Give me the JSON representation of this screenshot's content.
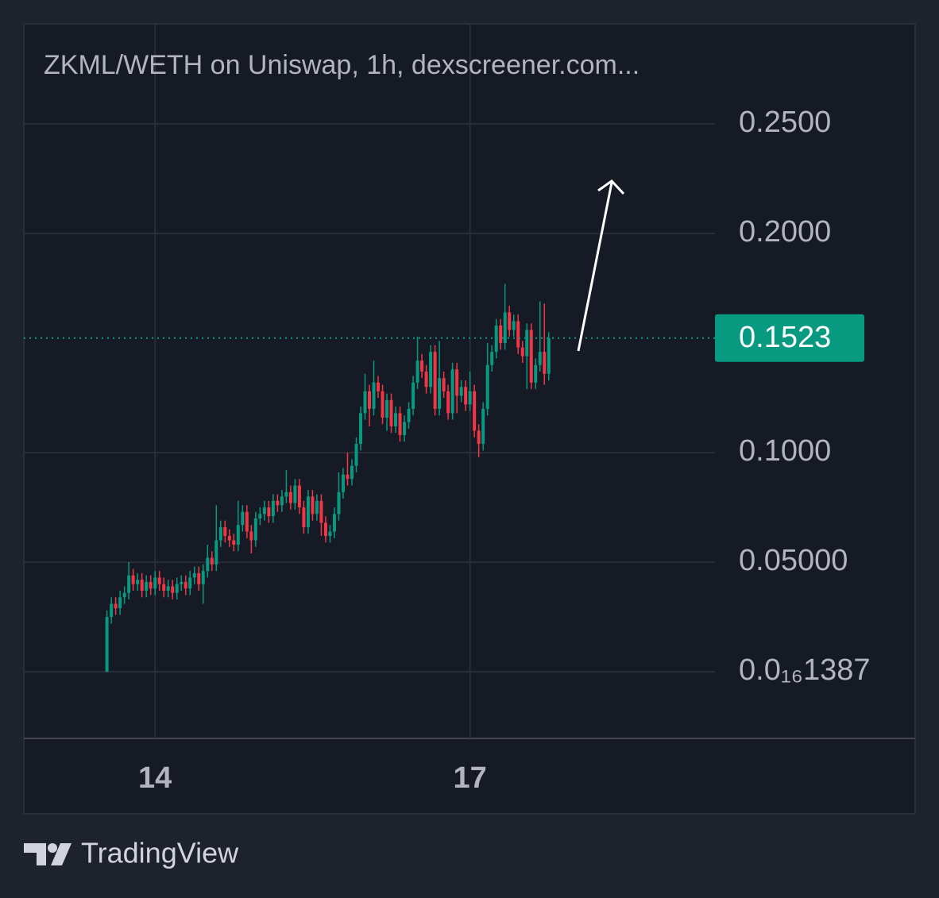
{
  "chart_data": {
    "type": "candlestick",
    "title": "ZKML/WETH on Uniswap, 1h, dexscreener.com...",
    "up_color": "#089981",
    "down_color": "#f23645",
    "open": [
      0,
      0.025,
      0.031,
      0.029,
      0.034,
      0.036,
      0.044,
      0.04,
      0.042,
      0.037,
      0.041,
      0.038,
      0.043,
      0.04,
      0.037,
      0.039,
      0.036,
      0.04,
      0.041,
      0.038,
      0.043,
      0.045,
      0.04,
      0.046,
      0.052,
      0.049,
      0.06,
      0.066,
      0.062,
      0.06,
      0.058,
      0.067,
      0.073,
      0.064,
      0.06,
      0.07,
      0.072,
      0.075,
      0.071,
      0.078,
      0.076,
      0.08,
      0.082,
      0.077,
      0.085,
      0.075,
      0.066,
      0.08,
      0.072,
      0.078,
      0.068,
      0.062,
      0.064,
      0.072,
      0.082,
      0.09,
      0.088,
      0.094,
      0.104,
      0.118,
      0.128,
      0.12,
      0.132,
      0.128,
      0.116,
      0.124,
      0.112,
      0.118,
      0.108,
      0.114,
      0.12,
      0.132,
      0.142,
      0.137,
      0.13,
      0.146,
      0.12,
      0.134,
      0.128,
      0.118,
      0.138,
      0.126,
      0.13,
      0.122,
      0.128,
      0.11,
      0.104,
      0.12,
      0.14,
      0.146,
      0.158,
      0.15,
      0.164,
      0.156,
      0.16,
      0.148,
      0.144,
      0.156,
      0.132,
      0.14,
      0.146,
      0.136
    ],
    "close": [
      0.025,
      0.031,
      0.029,
      0.034,
      0.036,
      0.044,
      0.04,
      0.042,
      0.037,
      0.041,
      0.038,
      0.043,
      0.04,
      0.037,
      0.039,
      0.036,
      0.04,
      0.041,
      0.038,
      0.043,
      0.045,
      0.04,
      0.046,
      0.052,
      0.049,
      0.06,
      0.066,
      0.062,
      0.06,
      0.058,
      0.067,
      0.073,
      0.064,
      0.06,
      0.07,
      0.072,
      0.075,
      0.071,
      0.078,
      0.076,
      0.08,
      0.082,
      0.077,
      0.085,
      0.075,
      0.066,
      0.08,
      0.072,
      0.078,
      0.068,
      0.062,
      0.064,
      0.072,
      0.082,
      0.09,
      0.088,
      0.094,
      0.104,
      0.118,
      0.128,
      0.12,
      0.132,
      0.128,
      0.116,
      0.124,
      0.112,
      0.118,
      0.108,
      0.114,
      0.12,
      0.132,
      0.142,
      0.137,
      0.13,
      0.146,
      0.12,
      0.134,
      0.128,
      0.118,
      0.138,
      0.126,
      0.13,
      0.122,
      0.128,
      0.11,
      0.104,
      0.12,
      0.14,
      0.146,
      0.158,
      0.15,
      0.164,
      0.156,
      0.16,
      0.148,
      0.144,
      0.156,
      0.132,
      0.14,
      0.146,
      0.136,
      0.1523
    ],
    "high": [
      0.028,
      0.034,
      0.034,
      0.037,
      0.039,
      0.05,
      0.047,
      0.045,
      0.045,
      0.044,
      0.044,
      0.046,
      0.046,
      0.043,
      0.042,
      0.042,
      0.043,
      0.044,
      0.044,
      0.046,
      0.048,
      0.048,
      0.049,
      0.058,
      0.055,
      0.076,
      0.069,
      0.069,
      0.065,
      0.063,
      0.078,
      0.076,
      0.076,
      0.067,
      0.073,
      0.075,
      0.078,
      0.078,
      0.081,
      0.081,
      0.083,
      0.092,
      0.085,
      0.088,
      0.088,
      0.078,
      0.083,
      0.083,
      0.081,
      0.081,
      0.071,
      0.067,
      0.075,
      0.091,
      0.093,
      0.1,
      0.097,
      0.107,
      0.121,
      0.136,
      0.131,
      0.142,
      0.135,
      0.131,
      0.127,
      0.127,
      0.121,
      0.121,
      0.117,
      0.123,
      0.135,
      0.153,
      0.145,
      0.14,
      0.149,
      0.149,
      0.151,
      0.137,
      0.131,
      0.141,
      0.141,
      0.133,
      0.133,
      0.137,
      0.131,
      0.113,
      0.123,
      0.15,
      0.149,
      0.161,
      0.161,
      0.177,
      0.167,
      0.163,
      0.163,
      0.151,
      0.159,
      0.159,
      0.143,
      0.169,
      0.168,
      0.155
    ],
    "low": [
      0,
      0.022,
      0.026,
      0.026,
      0.031,
      0.033,
      0.037,
      0.037,
      0.034,
      0.034,
      0.035,
      0.035,
      0.037,
      0.034,
      0.034,
      0.033,
      0.033,
      0.037,
      0.035,
      0.035,
      0.04,
      0.037,
      0.031,
      0.043,
      0.046,
      0.046,
      0.057,
      0.059,
      0.057,
      0.055,
      0.055,
      0.064,
      0.061,
      0.054,
      0.057,
      0.067,
      0.069,
      0.068,
      0.068,
      0.073,
      0.073,
      0.077,
      0.074,
      0.074,
      0.072,
      0.063,
      0.063,
      0.069,
      0.069,
      0.062,
      0.059,
      0.059,
      0.061,
      0.069,
      0.079,
      0.085,
      0.085,
      0.091,
      0.101,
      0.115,
      0.112,
      0.117,
      0.125,
      0.113,
      0.11,
      0.109,
      0.109,
      0.105,
      0.105,
      0.111,
      0.117,
      0.129,
      0.134,
      0.127,
      0.127,
      0.117,
      0.117,
      0.125,
      0.115,
      0.115,
      0.118,
      0.123,
      0.119,
      0.119,
      0.107,
      0.098,
      0.101,
      0.117,
      0.137,
      0.143,
      0.147,
      0.147,
      0.153,
      0.153,
      0.145,
      0.141,
      0.129,
      0.129,
      0.129,
      0.137,
      0.131,
      0.133
    ],
    "xlim": [
      -19,
      139
    ],
    "xticks": [
      {
        "value": 11,
        "label": "14"
      },
      {
        "value": 83,
        "label": "17"
      }
    ],
    "ylim": [
      -0.0304,
      0.2957
    ],
    "yticks": [
      {
        "value": 1.387e-17,
        "label": "0.0₁₆1387"
      },
      {
        "value": 0.05,
        "label": "0.05000"
      },
      {
        "value": 0.1,
        "label": "0.1000"
      },
      {
        "value": 0.2,
        "label": "0.2000"
      },
      {
        "value": 0.25,
        "label": "0.2500"
      }
    ],
    "last_price": 0.1523,
    "grid": true
  },
  "footer": {
    "brand": "TradingView"
  }
}
